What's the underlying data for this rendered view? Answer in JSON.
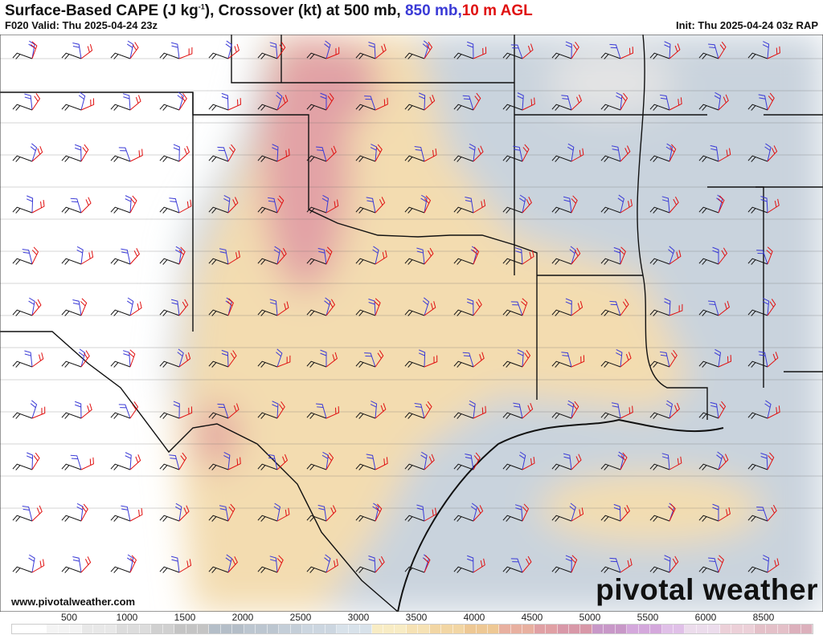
{
  "header": {
    "title_main": "Surface-Based CAPE (J kg",
    "title_sup": "-1",
    "title_rest": "), Crossover (kt) at 500 mb, ",
    "title_850": "850 mb,",
    "title_10m": "10 m AGL",
    "valid": "F020 Valid: Thu 2025-04-24 23z",
    "init": "Init: Thu 2025-04-24 03z RAP"
  },
  "footer": {
    "website": "www.pivotalweather.com",
    "brand": "pivotal weather"
  },
  "colorbar": {
    "ticks": [
      "500",
      "1000",
      "1500",
      "2000",
      "2500",
      "3000",
      "3500",
      "4000",
      "4500",
      "5000",
      "5500",
      "6000",
      "8500"
    ],
    "colors": [
      "#ffffff",
      "#f4f4f4",
      "#e8e8e8",
      "#dcdcdc",
      "#d0d0d0",
      "#c4c4c4",
      "#b4bec8",
      "#bcc6d0",
      "#c4ced8",
      "#ccd6e0",
      "#d8e2ea",
      "#f8ecc4",
      "#f6e2b4",
      "#f2d6a4",
      "#eec894",
      "#e8b0a0",
      "#e0a0a4",
      "#d898a8",
      "#c898c8",
      "#d4a8dc",
      "#e0c0e8",
      "#ecdcec",
      "#ecd0d8",
      "#e4c0c8",
      "#dcb0bc"
    ],
    "units": "J kg-1"
  },
  "colors": {
    "barb_500mb": "#111111",
    "barb_850mb": "#3a3ad6",
    "barb_10m": "#e01010"
  }
}
